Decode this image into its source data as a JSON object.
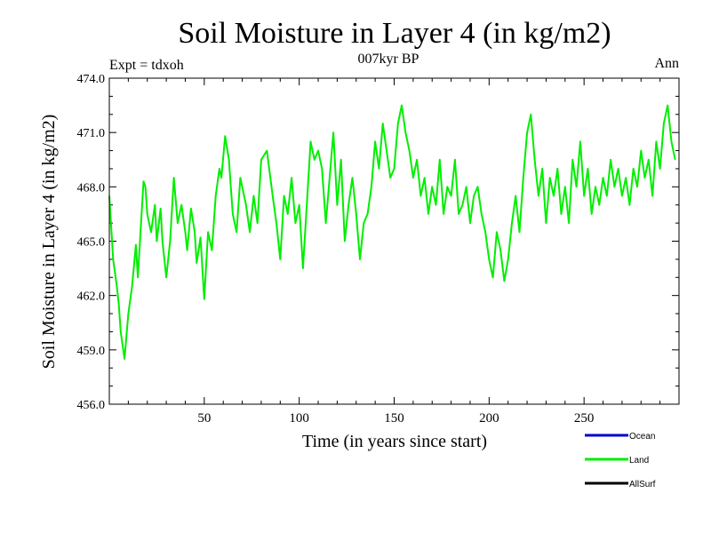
{
  "chart_data": {
    "type": "line",
    "title": "Soil Moisture in Layer 4 (in kg/m2)",
    "subtitle": "007kyr BP",
    "left_note": "Expt = tdxoh",
    "right_note": "Ann",
    "xlabel": "Time (in years since start)",
    "ylabel": "Soil Moisture in Layer 4 (in kg/m2)",
    "xlim": [
      0,
      300
    ],
    "ylim": [
      456,
      474
    ],
    "x_ticks": [
      50,
      100,
      150,
      200,
      250
    ],
    "x_tick_labels": [
      "50",
      "100",
      "150",
      "200",
      "250"
    ],
    "y_ticks": [
      456,
      459,
      462,
      465,
      468,
      471,
      474
    ],
    "y_tick_labels": [
      "456.0",
      "459.0",
      "462.0",
      "465.0",
      "468.0",
      "471.0",
      "474.0"
    ],
    "grid": false,
    "legend_position": "bottom-right",
    "series": [
      {
        "name": "Ocean",
        "color": "#0000cc",
        "x": [],
        "values": []
      },
      {
        "name": "Land",
        "color": "#00ee00",
        "x": [
          0,
          2,
          4,
          5,
          6,
          8,
          10,
          12,
          14,
          15,
          17,
          18,
          19,
          20,
          22,
          24,
          25,
          27,
          28,
          30,
          32,
          34,
          36,
          38,
          40,
          41,
          43,
          45,
          46,
          48,
          50,
          52,
          54,
          56,
          58,
          59,
          61,
          63,
          64,
          65,
          67,
          69,
          72,
          74,
          76,
          78,
          80,
          83,
          86,
          88,
          90,
          92,
          94,
          96,
          98,
          100,
          102,
          104,
          106,
          108,
          110,
          112,
          114,
          116,
          118,
          120,
          122,
          124,
          126,
          128,
          130,
          132,
          134,
          136,
          138,
          140,
          142,
          144,
          146,
          148,
          150,
          152,
          154,
          156,
          158,
          160,
          162,
          164,
          166,
          168,
          170,
          172,
          174,
          176,
          178,
          180,
          182,
          184,
          186,
          188,
          190,
          192,
          194,
          196,
          198,
          200,
          202,
          204,
          206,
          208,
          210,
          212,
          214,
          216,
          218,
          220,
          222,
          224,
          226,
          228,
          230,
          232,
          234,
          236,
          238,
          240,
          242,
          244,
          246,
          248,
          250,
          252,
          254,
          256,
          258,
          260,
          262,
          264,
          266,
          268,
          270,
          272,
          274,
          276,
          278,
          280,
          282,
          284,
          286,
          288,
          290,
          292,
          294,
          296,
          298
        ],
        "values": [
          467.5,
          464.0,
          462.5,
          461.5,
          460.0,
          458.5,
          461.0,
          462.5,
          464.8,
          463.0,
          466.5,
          468.3,
          468.0,
          466.5,
          465.5,
          467.0,
          465.0,
          466.8,
          465.0,
          463.0,
          465.0,
          468.5,
          466.0,
          467.0,
          465.5,
          464.5,
          466.8,
          465.5,
          463.8,
          465.2,
          461.8,
          465.5,
          464.5,
          467.5,
          469.0,
          468.5,
          470.8,
          469.5,
          468.0,
          466.5,
          465.5,
          468.5,
          467.0,
          465.5,
          467.5,
          466.0,
          469.5,
          470.0,
          467.5,
          466.0,
          464.0,
          467.5,
          466.5,
          468.5,
          466.0,
          467.0,
          463.5,
          467.0,
          470.5,
          469.5,
          470.0,
          469.0,
          466.0,
          468.5,
          471.0,
          467.0,
          469.5,
          465.0,
          467.0,
          468.5,
          466.5,
          464.0,
          466.0,
          466.5,
          468.0,
          470.5,
          469.0,
          471.5,
          470.0,
          468.5,
          469.0,
          471.5,
          472.5,
          471.0,
          470.0,
          468.5,
          469.5,
          467.5,
          468.5,
          466.5,
          468.0,
          467.0,
          469.5,
          466.5,
          468.0,
          467.5,
          469.5,
          466.5,
          467.0,
          468.0,
          466.0,
          467.5,
          468.0,
          466.5,
          465.5,
          464.0,
          463.0,
          465.5,
          464.5,
          462.8,
          464.0,
          466.0,
          467.5,
          465.5,
          468.5,
          471.0,
          472.0,
          469.5,
          467.5,
          469.0,
          466.0,
          468.5,
          467.5,
          469.0,
          466.5,
          468.0,
          466.0,
          469.5,
          468.0,
          470.5,
          467.5,
          469.0,
          466.5,
          468.0,
          467.0,
          468.5,
          467.5,
          469.5,
          468.0,
          469.0,
          467.5,
          468.5,
          467.0,
          469.0,
          468.0,
          470.0,
          468.5,
          469.5,
          467.5,
          470.5,
          469.0,
          471.5,
          472.5,
          470.5,
          469.5
        ]
      },
      {
        "name": "AllSurf",
        "color": "#000000",
        "x": [],
        "values": []
      }
    ]
  }
}
